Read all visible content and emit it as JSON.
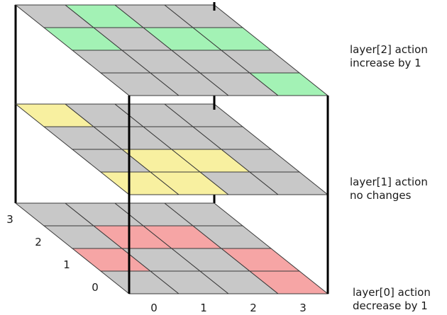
{
  "layers": [
    {
      "index": 0,
      "title": "layer[0] action",
      "subtitle": "decrease by 1",
      "highlight_color": "#f6a5a5",
      "highlighted_cells": [
        [
          0,
          1
        ],
        [
          1,
          2
        ],
        [
          2,
          2
        ],
        [
          3,
          0
        ],
        [
          3,
          1
        ]
      ]
    },
    {
      "index": 1,
      "title": "layer[1] action",
      "subtitle": "no changes",
      "highlight_color": "#f8f0a0",
      "highlighted_cells": [
        [
          0,
          0
        ],
        [
          0,
          3
        ],
        [
          1,
          0
        ],
        [
          1,
          1
        ],
        [
          2,
          1
        ]
      ]
    },
    {
      "index": 2,
      "title": "layer[2] action",
      "subtitle": "increase by 1",
      "highlight_color": "#a3f2b5",
      "highlighted_cells": [
        [
          0,
          2
        ],
        [
          1,
          3
        ],
        [
          2,
          2
        ],
        [
          3,
          0
        ],
        [
          3,
          2
        ]
      ]
    }
  ],
  "grid_color": "#c8c8c8",
  "frame_color": "#000000",
  "x_axis": {
    "ticks": [
      "0",
      "1",
      "2",
      "3"
    ]
  },
  "y_axis": {
    "ticks": [
      "0",
      "1",
      "2",
      "3"
    ]
  }
}
